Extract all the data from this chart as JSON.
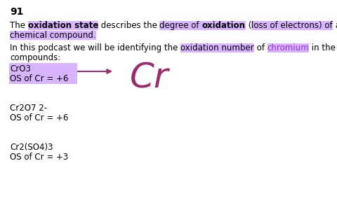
{
  "page_number": "91",
  "bg_color": "#ffffff",
  "text_color": "#000000",
  "purple_highlight": "#d8b4fe",
  "purple_text_color": "#9333ea",
  "arrow_color": "#9b2c6e",
  "compound1_label": "CrO3",
  "compound1_os": "OS of Cr = +6",
  "compound2_label": "Cr2O7 2-",
  "compound2_os": "OS of Cr = +6",
  "compound3_label": "Cr2(SO4)3",
  "compound3_os": "OS of Cr = +3",
  "big_cr_text": "Cr",
  "font_size_body": 8.5,
  "font_size_page_num": 10,
  "font_size_big_cr": 36
}
